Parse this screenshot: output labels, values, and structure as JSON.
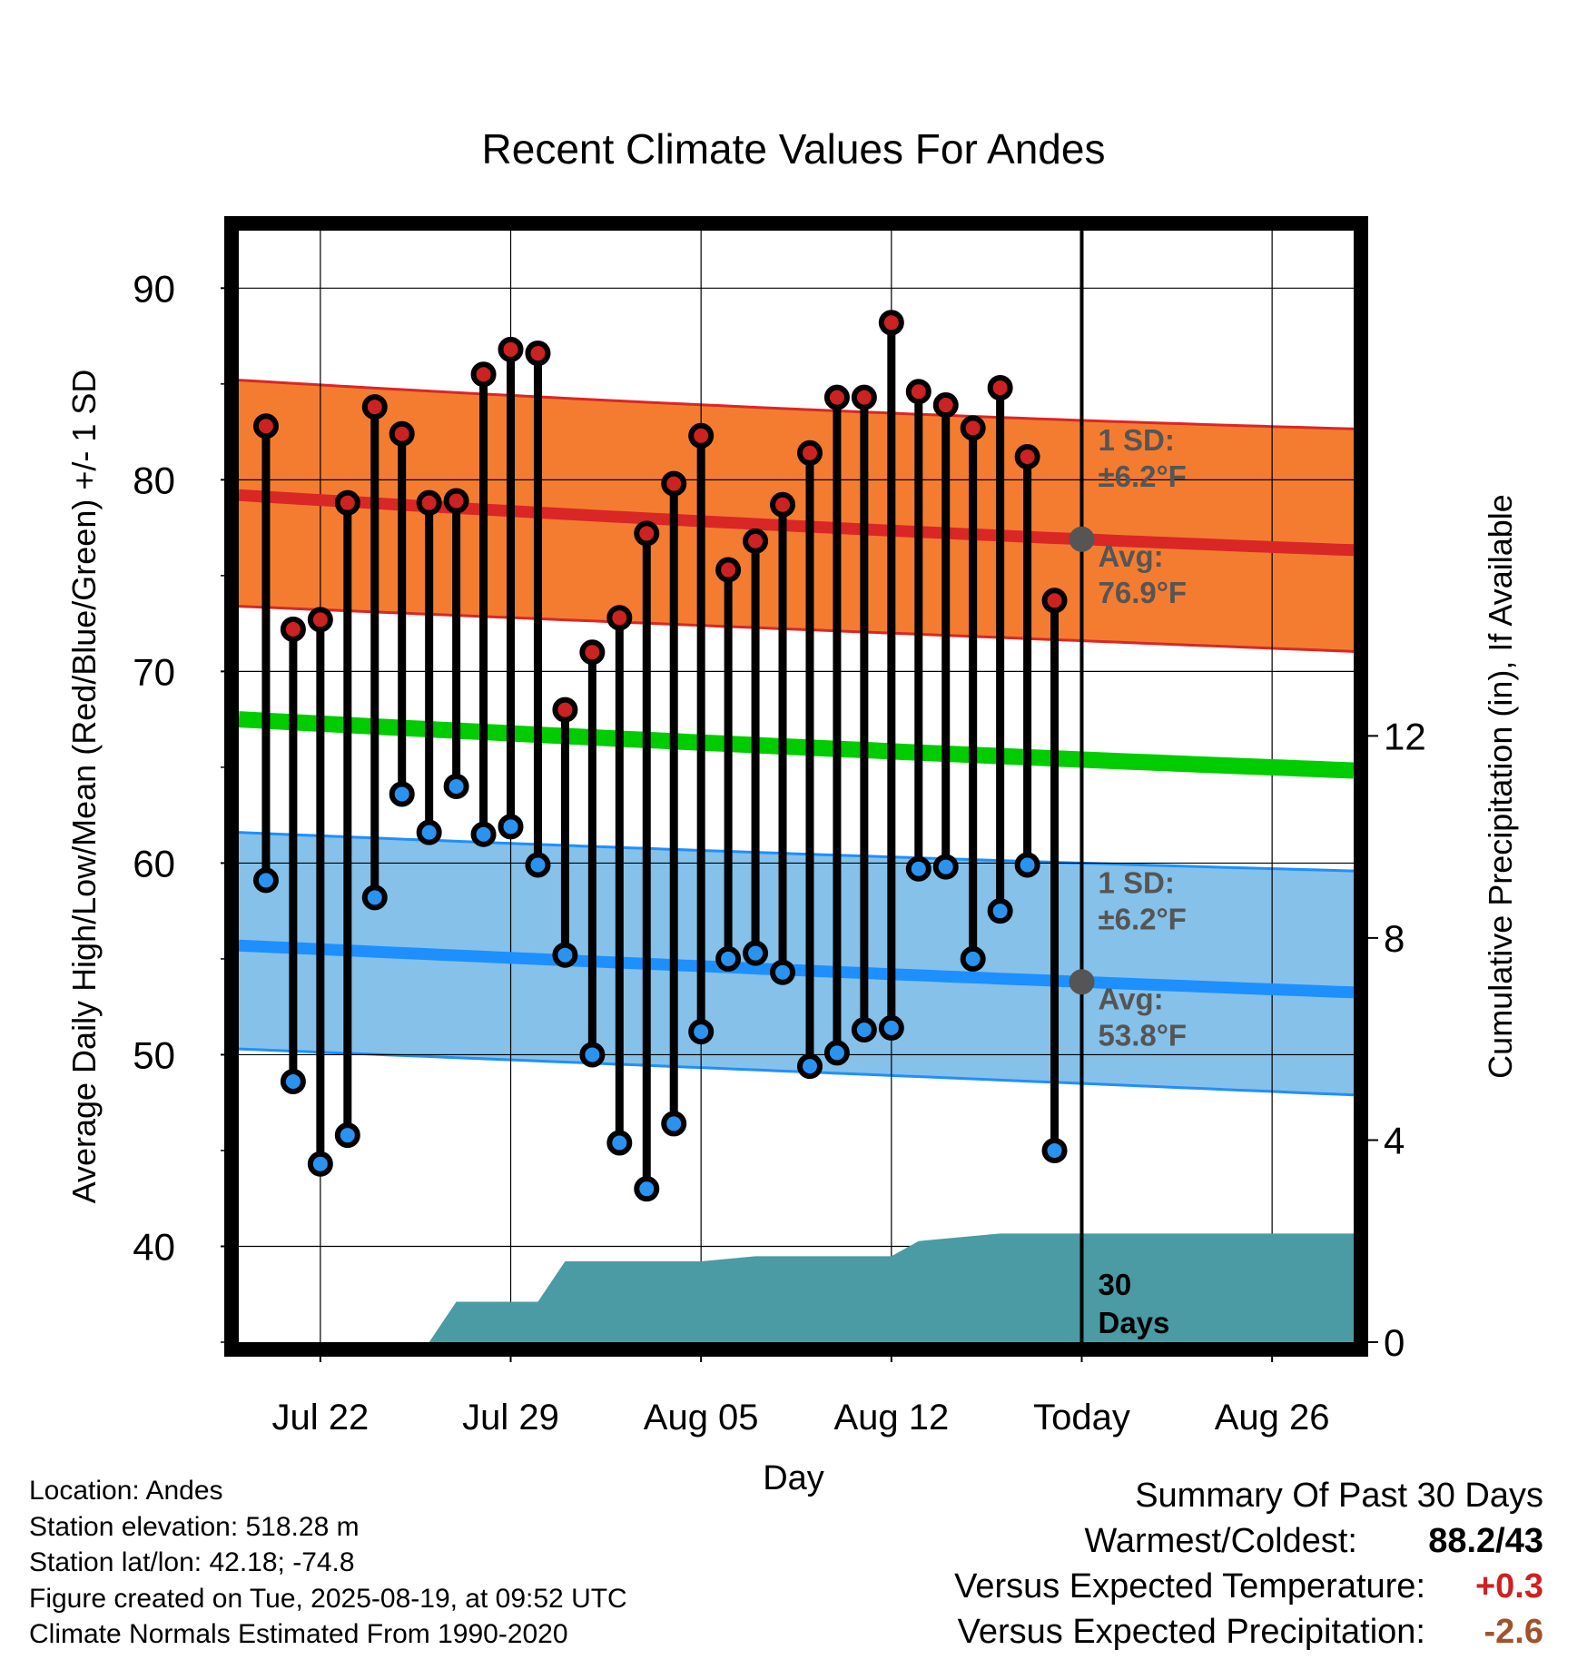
{
  "chart_data": {
    "type": "line",
    "title": "Recent Climate Values For Andes",
    "xlabel": "Day",
    "ylabel": "Average Daily High/Low/Mean (Red/Blue/Green) +/- 1 SD",
    "y2label": "Cumulative Precipitation (in), If Available",
    "ylim": [
      35,
      93
    ],
    "y2lim": [
      0,
      22
    ],
    "yticks": [
      "40",
      "50",
      "60",
      "70",
      "80",
      "90"
    ],
    "y2ticks": [
      "0",
      "4",
      "8",
      "12"
    ],
    "x_range_days": [
      "Jul 19",
      "Aug 29"
    ],
    "x_ticks": [
      {
        "label": "Jul 22",
        "date": "2025-07-22"
      },
      {
        "label": "Jul 29",
        "date": "2025-07-29"
      },
      {
        "label": "Aug 05",
        "date": "2025-08-05"
      },
      {
        "label": "Aug 12",
        "date": "2025-08-12"
      },
      {
        "label": "Today",
        "date": "2025-08-19"
      },
      {
        "label": "Aug 26",
        "date": "2025-08-26"
      }
    ],
    "today": "2025-08-19",
    "grid": true,
    "daily": {
      "dates": [
        "2025-07-20",
        "2025-07-21",
        "2025-07-22",
        "2025-07-23",
        "2025-07-24",
        "2025-07-25",
        "2025-07-26",
        "2025-07-27",
        "2025-07-28",
        "2025-07-29",
        "2025-07-30",
        "2025-07-31",
        "2025-08-01",
        "2025-08-02",
        "2025-08-03",
        "2025-08-04",
        "2025-08-05",
        "2025-08-06",
        "2025-08-07",
        "2025-08-08",
        "2025-08-09",
        "2025-08-10",
        "2025-08-11",
        "2025-08-12",
        "2025-08-13",
        "2025-08-14",
        "2025-08-15",
        "2025-08-16",
        "2025-08-17",
        "2025-08-18"
      ],
      "highs": [
        82.8,
        72.2,
        72.7,
        78.8,
        83.8,
        82.4,
        78.8,
        78.9,
        85.5,
        86.8,
        86.6,
        68.0,
        71.0,
        72.8,
        77.2,
        79.8,
        82.3,
        75.3,
        76.8,
        78.7,
        81.4,
        84.3,
        84.3,
        88.2,
        84.6,
        83.9,
        82.7,
        84.8,
        81.2,
        73.7
      ],
      "lows": [
        59.1,
        48.6,
        44.3,
        45.8,
        58.2,
        63.6,
        61.6,
        64.0,
        61.5,
        61.9,
        59.9,
        55.2,
        50.0,
        45.4,
        43.0,
        46.4,
        51.2,
        55.0,
        55.3,
        54.3,
        49.4,
        50.1,
        51.3,
        51.4,
        59.7,
        59.8,
        55.0,
        57.5,
        59.9,
        45.0
      ]
    },
    "normal_high": {
      "start": 79.2,
      "today": 76.9,
      "end": 75.4
    },
    "normal_low": {
      "start": 55.7,
      "today": 53.8,
      "end": 52.2
    },
    "normal_mean": {
      "start": 67.5,
      "today": 65.4,
      "end": 63.8
    },
    "high_band": {
      "upper": [
        85.2,
        83.1,
        82.1
      ],
      "lower": [
        73.4,
        71.6,
        69.9
      ]
    },
    "low_band": {
      "upper": [
        61.6,
        60.0,
        58.9
      ],
      "lower": [
        50.3,
        48.5,
        46.6
      ]
    },
    "precip_cumulative": {
      "x": [
        "2025-07-19",
        "2025-07-26",
        "2025-07-27",
        "2025-07-30",
        "2025-07-31",
        "2025-08-05",
        "2025-08-07",
        "2025-08-12",
        "2025-08-13",
        "2025-08-16",
        "2025-08-29"
      ],
      "y": [
        0,
        0,
        0.8,
        0.8,
        1.6,
        1.6,
        1.7,
        1.7,
        2.0,
        2.15,
        2.15
      ]
    },
    "annotations": {
      "high_sd_title": "1 SD:",
      "high_sd_value": "±6.2°F",
      "high_avg_title": "Avg:",
      "high_avg_value": "76.9°F",
      "low_sd_title": "1 SD:",
      "low_sd_value": "±6.2°F",
      "low_avg_title": "Avg:",
      "low_avg_value": "53.8°F",
      "precip_label_1": "30",
      "precip_label_2": "Days"
    },
    "colors": {
      "high_band": "#f47c30",
      "high_line": "#d92726",
      "low_band": "#85c1e9",
      "low_line": "#1e8fff",
      "mean_line": "#00cc00",
      "precip": "#4a9ba3",
      "high_point": "#cc2222",
      "low_point": "#2a93f0",
      "today_marker": "#555555",
      "annotation_text": "#555555"
    }
  },
  "info": {
    "location": "Location: Andes",
    "elevation": "Station elevation: 518.28 m",
    "latlon": "Station lat/lon: 42.18; -74.8",
    "created": "Figure created on Tue, 2025-08-19, at 09:52 UTC",
    "normals": "Climate Normals Estimated From 1990-2020"
  },
  "summary": {
    "title": "Summary Of Past 30 Days",
    "warm_cold_label": "Warmest/Coldest:",
    "warm_cold_value": "88.2/43",
    "temp_label": "Versus Expected Temperature:",
    "temp_value": "+0.3",
    "temp_color": "#cc2222",
    "precip_label": "Versus Expected Precipitation:",
    "precip_value": "-2.6",
    "precip_color": "#a0522d"
  }
}
